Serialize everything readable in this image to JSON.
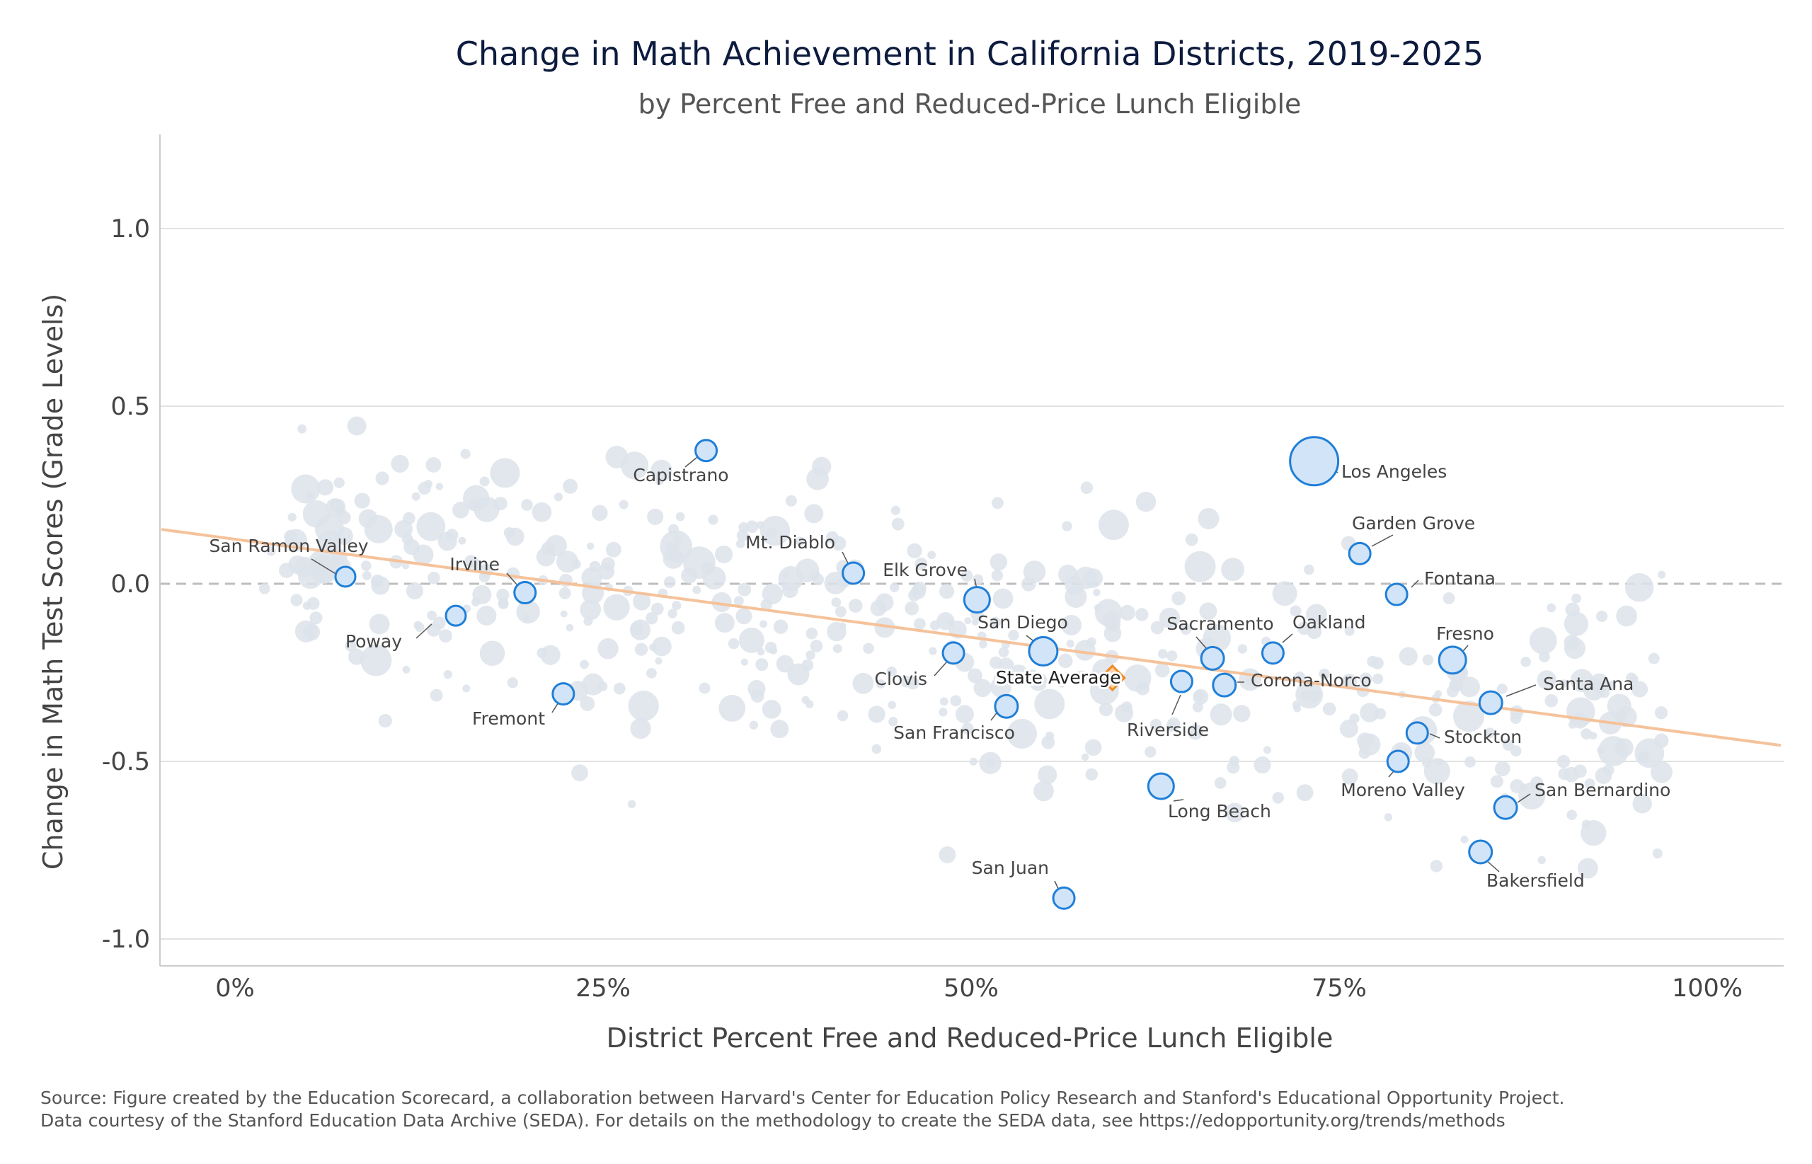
{
  "chart_data": {
    "type": "scatter",
    "title": "Change in Math Achievement in California Districts, 2019-2025",
    "subtitle": "by Percent Free and Reduced-Price Lunch Eligible",
    "xlabel": "District Percent Free and Reduced-Price Lunch Eligible",
    "ylabel": "Change in Math Test Scores (Grade Levels)",
    "xlim": [
      -0.05,
      1.05
    ],
    "ylim": [
      -1.08,
      1.27
    ],
    "x_ticks": [
      0,
      0.25,
      0.5,
      0.75,
      1.0
    ],
    "x_tick_labels": [
      "0%",
      "25%",
      "50%",
      "75%",
      "100%"
    ],
    "y_ticks": [
      1.0,
      0.5,
      0.0,
      -0.5,
      -1.0
    ],
    "y_tick_labels": [
      "1.0",
      "0.5",
      "0.0",
      "-0.5",
      "-1.0"
    ],
    "grid": "horizontal",
    "reference_line_y": 0,
    "trend_line": {
      "x": [
        -0.05,
        1.05
      ],
      "y": [
        0.153,
        -0.455
      ],
      "color": "#f5c29a"
    },
    "colors": {
      "highlight_fill": "#d2e4f7",
      "highlight_stroke": "#1f7fd8",
      "background_point": "#dde3ea",
      "state_average": "#f08a1f",
      "grid": "#e2e2e2",
      "zero_line": "#bdbdbd"
    },
    "highlighted": [
      {
        "name": "San Ramon Valley",
        "x": 0.075,
        "y": 0.02
      },
      {
        "name": "Poway",
        "x": 0.15,
        "y": -0.09
      },
      {
        "name": "Irvine",
        "x": 0.197,
        "y": -0.025
      },
      {
        "name": "Fremont",
        "x": 0.223,
        "y": -0.31
      },
      {
        "name": "Capistrano",
        "x": 0.32,
        "y": 0.375
      },
      {
        "name": "Mt. Diablo",
        "x": 0.42,
        "y": 0.03
      },
      {
        "name": "Elk Grove",
        "x": 0.504,
        "y": -0.045
      },
      {
        "name": "Clovis",
        "x": 0.488,
        "y": -0.195
      },
      {
        "name": "San Diego",
        "x": 0.549,
        "y": -0.19
      },
      {
        "name": "San Francisco",
        "x": 0.524,
        "y": -0.345
      },
      {
        "name": "San Juan",
        "x": 0.563,
        "y": -0.885
      },
      {
        "name": "Riverside",
        "x": 0.643,
        "y": -0.275
      },
      {
        "name": "Long Beach",
        "x": 0.629,
        "y": -0.57
      },
      {
        "name": "Sacramento",
        "x": 0.664,
        "y": -0.21
      },
      {
        "name": "Corona-Norco",
        "x": 0.672,
        "y": -0.285
      },
      {
        "name": "Oakland",
        "x": 0.705,
        "y": -0.195
      },
      {
        "name": "Los Angeles",
        "x": 0.733,
        "y": 0.345
      },
      {
        "name": "Garden Grove",
        "x": 0.764,
        "y": 0.085
      },
      {
        "name": "Fontana",
        "x": 0.789,
        "y": -0.03
      },
      {
        "name": "Fresno",
        "x": 0.827,
        "y": -0.215
      },
      {
        "name": "Santa Ana",
        "x": 0.853,
        "y": -0.335
      },
      {
        "name": "Stockton",
        "x": 0.803,
        "y": -0.42
      },
      {
        "name": "Moreno Valley",
        "x": 0.79,
        "y": -0.5
      },
      {
        "name": "San Bernardino",
        "x": 0.863,
        "y": -0.63
      },
      {
        "name": "Bakersfield",
        "x": 0.846,
        "y": -0.755
      }
    ],
    "state_average": {
      "name": "State Average",
      "x": 0.596,
      "y": -0.265
    }
  },
  "source": {
    "line1": "Source: Figure created by the Education Scorecard, a collaboration between Harvard's Center for Education Policy Research and Stanford's Educational Opportunity Project.",
    "line2": "Data courtesy of the Stanford Education Data Archive (SEDA). For details on the methodology to create the SEDA data, see https://edopportunity.org/trends/methods"
  }
}
